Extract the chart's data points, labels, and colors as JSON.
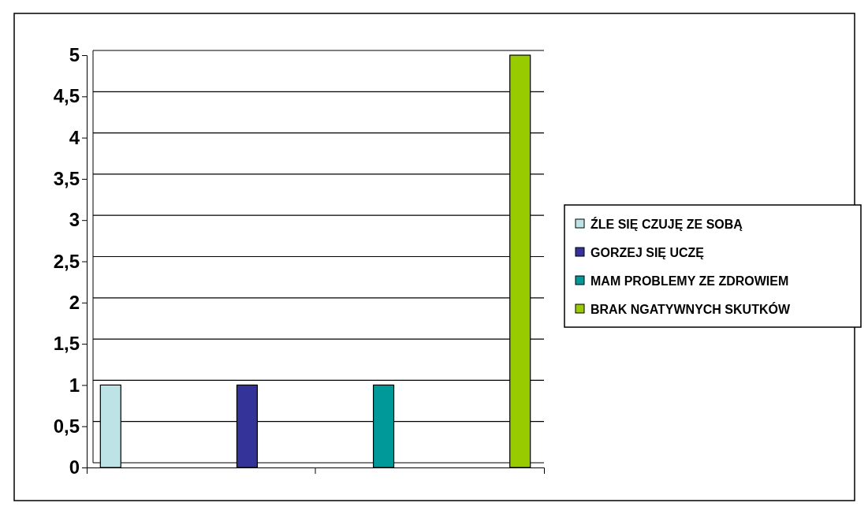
{
  "chart_data": {
    "type": "bar",
    "categories": [
      null
    ],
    "series": [
      {
        "name": "ŹLE SIĘ CZUJĘ ZE SOBĄ",
        "color": "#bde3e6",
        "values": [
          1
        ]
      },
      {
        "name": "GORZEJ SIĘ UCZĘ",
        "color": "#333399",
        "values": [
          1
        ]
      },
      {
        "name": "MAM  PROBLEMY ZE ZDROWIEM",
        "color": "#009999",
        "values": [
          1
        ]
      },
      {
        "name": "BRAK NGATYWNYCH SKUTKÓW",
        "color": "#99cc00",
        "values": [
          5
        ]
      }
    ],
    "ylim": [
      0,
      5
    ],
    "yticks": [
      0,
      {
        "value": 0.5,
        "label": "0,5"
      },
      1,
      {
        "value": 1.5,
        "label": "1,5"
      },
      2,
      {
        "value": 2.5,
        "label": "2,5"
      },
      3,
      {
        "value": 3.5,
        "label": "3,5"
      },
      4,
      {
        "value": 4.5,
        "label": "4,5"
      },
      5
    ],
    "grid": "y",
    "legend": "right"
  }
}
